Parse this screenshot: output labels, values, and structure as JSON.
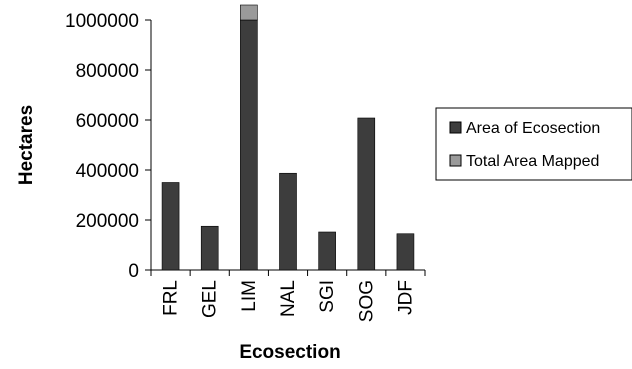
{
  "chart_data": {
    "type": "bar",
    "stacked": true,
    "title": "",
    "xlabel": "Ecosection",
    "ylabel": "Hectares",
    "ylim": [
      0,
      1000000
    ],
    "yticks": [
      0,
      200000,
      400000,
      600000,
      800000,
      1000000
    ],
    "ytick_labels": [
      "0",
      "200000",
      "400000",
      "600000",
      "800000",
      "1000000"
    ],
    "categories": [
      "FRL",
      "GEL",
      "LIM",
      "NAL",
      "SGI",
      "SOG",
      "JDF"
    ],
    "series": [
      {
        "name": "Area of Ecosection",
        "color": "#3d3d3d",
        "values": [
          350000,
          175000,
          1000000,
          387000,
          152000,
          608000,
          145000
        ]
      },
      {
        "name": "Total Area Mapped",
        "color": "#9a9a9a",
        "values": [
          0,
          0,
          60000,
          0,
          0,
          0,
          0
        ]
      }
    ],
    "grid": false,
    "legend_position": "right"
  }
}
